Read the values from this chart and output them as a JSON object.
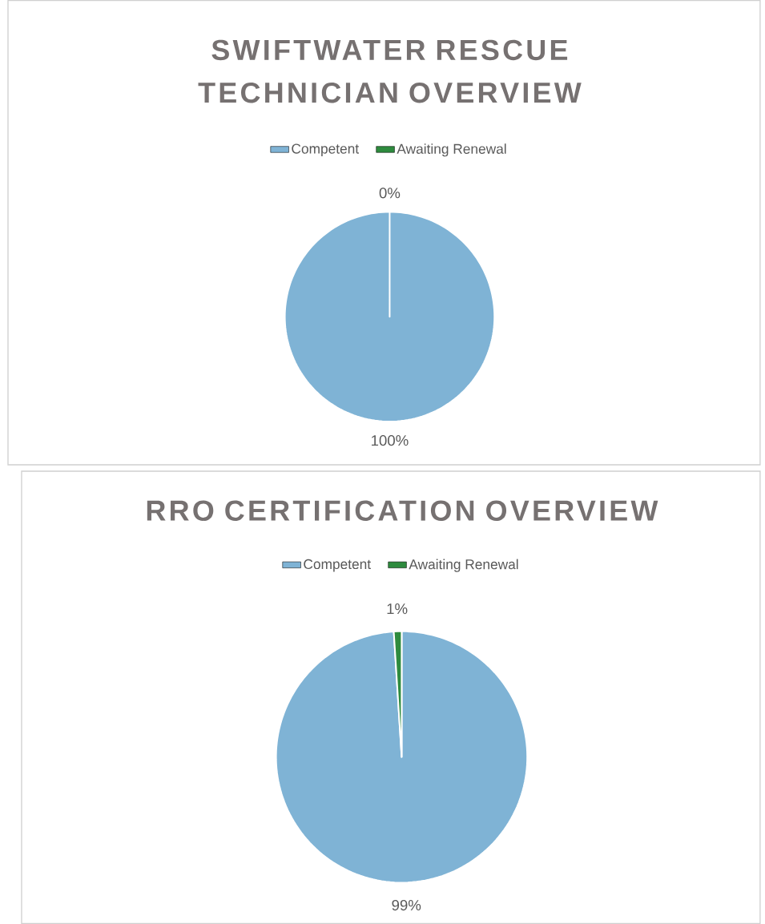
{
  "chart_data": [
    {
      "type": "pie",
      "title": "SWIFTWATER RESCUE TECHNICIAN OVERVIEW",
      "categories": [
        "Competent",
        "Awaiting Renewal"
      ],
      "values": [
        100,
        0
      ],
      "colors": [
        "#7fb3d5",
        "#2e8b3e"
      ],
      "value_labels": [
        "100%",
        "0%"
      ],
      "legend": "top"
    },
    {
      "type": "pie",
      "title": "RRO CERTIFICATION OVERVIEW",
      "categories": [
        "Competent",
        "Awaiting Renewal"
      ],
      "values": [
        99,
        1
      ],
      "colors": [
        "#7fb3d5",
        "#2e8b3e"
      ],
      "value_labels": [
        "99%",
        "1%"
      ],
      "legend": "top"
    }
  ]
}
